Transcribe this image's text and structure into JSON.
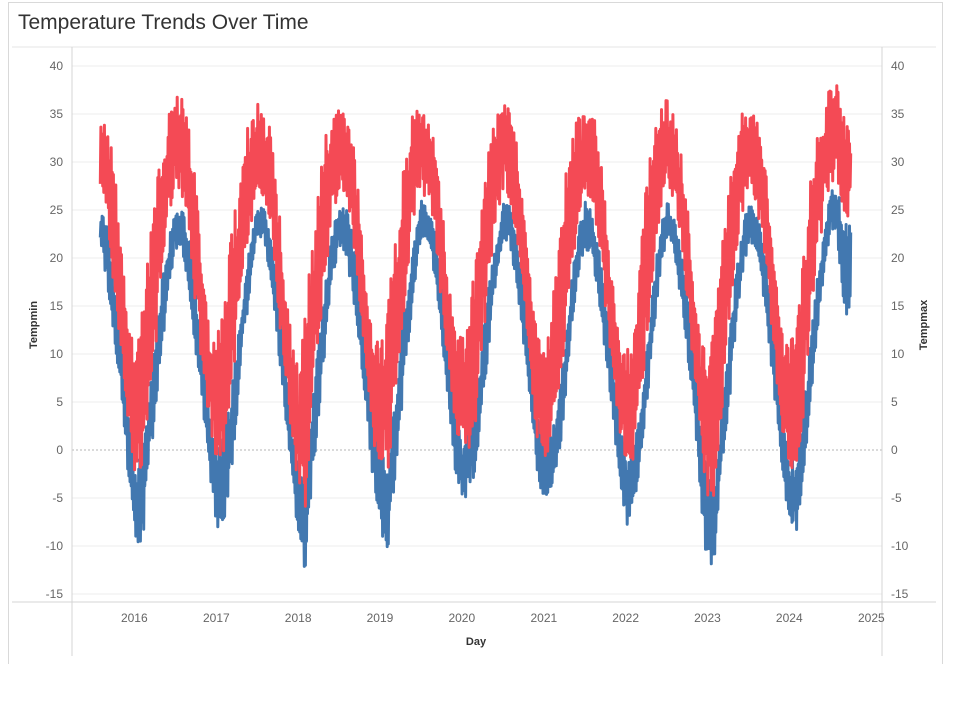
{
  "title": "Temperature Trends Over Time",
  "chart_data": {
    "type": "line",
    "title": "Temperature Trends Over Time",
    "xlabel": "Day",
    "ylabel_left": "Tempmin",
    "ylabel_right": "Tempmax",
    "xlim": [
      "2015-08-01",
      "2024-09-10"
    ],
    "ylim": [
      -15,
      40
    ],
    "y_ticks": [
      -15,
      -10,
      -5,
      0,
      5,
      10,
      15,
      20,
      25,
      30,
      35,
      40
    ],
    "x_ticks": [
      "2016",
      "2017",
      "2018",
      "2019",
      "2020",
      "2021",
      "2022",
      "2023",
      "2024",
      "2025"
    ],
    "grid": true,
    "zero_line": true,
    "series": [
      {
        "name": "Tempmin",
        "axis": "left",
        "color": "#4278b0",
        "x": [
          "2015-08-01",
          "2015-09-01",
          "2015-10-01",
          "2015-11-01",
          "2015-12-01",
          "2016-01-01",
          "2016-02-01",
          "2016-03-01",
          "2016-04-01",
          "2016-05-01",
          "2016-06-01",
          "2016-07-01",
          "2016-08-01",
          "2016-09-01",
          "2016-10-01",
          "2016-11-01",
          "2016-12-01",
          "2017-01-01",
          "2017-02-01",
          "2017-03-01",
          "2017-04-01",
          "2017-05-01",
          "2017-06-01",
          "2017-07-01",
          "2017-08-01",
          "2017-09-01",
          "2017-10-01",
          "2017-11-01",
          "2017-12-01",
          "2018-01-01",
          "2018-02-01",
          "2018-03-01",
          "2018-04-01",
          "2018-05-01",
          "2018-06-01",
          "2018-07-01",
          "2018-08-01",
          "2018-09-01",
          "2018-10-01",
          "2018-11-01",
          "2018-12-01",
          "2019-01-01",
          "2019-02-01",
          "2019-03-01",
          "2019-04-01",
          "2019-05-01",
          "2019-06-01",
          "2019-07-01",
          "2019-08-01",
          "2019-09-01",
          "2019-10-01",
          "2019-11-01",
          "2019-12-01",
          "2020-01-01",
          "2020-02-01",
          "2020-03-01",
          "2020-04-01",
          "2020-05-01",
          "2020-06-01",
          "2020-07-01",
          "2020-08-01",
          "2020-09-01",
          "2020-10-01",
          "2020-11-01",
          "2020-12-01",
          "2021-01-01",
          "2021-02-01",
          "2021-03-01",
          "2021-04-01",
          "2021-05-01",
          "2021-06-01",
          "2021-07-01",
          "2021-08-01",
          "2021-09-01",
          "2021-10-01",
          "2021-11-01",
          "2021-12-01",
          "2022-01-01",
          "2022-02-01",
          "2022-03-01",
          "2022-04-01",
          "2022-05-01",
          "2022-06-01",
          "2022-07-01",
          "2022-08-01",
          "2022-09-01",
          "2022-10-01",
          "2022-11-01",
          "2022-12-01",
          "2023-01-01",
          "2023-02-01",
          "2023-03-01",
          "2023-04-01",
          "2023-05-01",
          "2023-06-01",
          "2023-07-01",
          "2023-08-01",
          "2023-09-01",
          "2023-10-01",
          "2023-11-01",
          "2023-12-01",
          "2024-01-01",
          "2024-02-01",
          "2024-03-01",
          "2024-04-01",
          "2024-05-01",
          "2024-06-01",
          "2024-07-01",
          "2024-08-01",
          "2024-09-01"
        ],
        "lo": [
          21,
          17,
          12,
          6,
          -2,
          -9,
          -11,
          -3,
          3,
          10,
          17,
          21,
          21,
          16,
          10,
          4,
          -3,
          -8,
          -9,
          -4,
          3,
          11,
          17,
          22,
          22,
          17,
          11,
          4,
          -3,
          -10,
          -13,
          -4,
          3,
          11,
          18,
          21,
          20,
          16,
          10,
          4,
          -4,
          -8,
          -12,
          -5,
          3,
          10,
          17,
          22,
          22,
          18,
          12,
          5,
          -2,
          -5,
          -5,
          -2,
          4,
          11,
          18,
          22,
          21,
          17,
          11,
          5,
          -3,
          -5,
          -4,
          -2,
          4,
          12,
          18,
          21,
          20,
          16,
          10,
          4,
          -3,
          -8,
          -7,
          -3,
          4,
          11,
          18,
          22,
          21,
          16,
          10,
          4,
          -6,
          -13,
          -11,
          -3,
          3,
          11,
          18,
          21,
          21,
          17,
          11,
          4,
          -3,
          -8,
          -9,
          -3,
          4,
          11,
          18,
          23,
          22,
          14
        ],
        "hi": [
          25,
          23,
          17,
          12,
          5,
          -2,
          0,
          6,
          12,
          18,
          22,
          26,
          25,
          22,
          16,
          10,
          3,
          0,
          2,
          6,
          12,
          18,
          22,
          26,
          25,
          22,
          17,
          10,
          2,
          -2,
          -3,
          5,
          12,
          18,
          23,
          26,
          25,
          22,
          17,
          11,
          3,
          0,
          -2,
          5,
          12,
          18,
          22,
          26,
          25,
          23,
          17,
          11,
          5,
          0,
          3,
          5,
          12,
          18,
          22,
          26,
          26,
          22,
          17,
          11,
          4,
          0,
          2,
          5,
          11,
          18,
          23,
          26,
          25,
          21,
          16,
          10,
          3,
          -1,
          0,
          4,
          11,
          18,
          23,
          26,
          24,
          21,
          16,
          10,
          2,
          -3,
          -3,
          4,
          11,
          18,
          23,
          26,
          25,
          22,
          17,
          10,
          3,
          -1,
          -1,
          5,
          12,
          18,
          23,
          27,
          27,
          24
        ]
      },
      {
        "name": "Tempmax",
        "axis": "right",
        "color": "#f44a55",
        "x": [
          "2015-08-01",
          "2015-09-01",
          "2015-10-01",
          "2015-11-01",
          "2015-12-01",
          "2016-01-01",
          "2016-02-01",
          "2016-03-01",
          "2016-04-01",
          "2016-05-01",
          "2016-06-01",
          "2016-07-01",
          "2016-08-01",
          "2016-09-01",
          "2016-10-01",
          "2016-11-01",
          "2016-12-01",
          "2017-01-01",
          "2017-02-01",
          "2017-03-01",
          "2017-04-01",
          "2017-05-01",
          "2017-06-01",
          "2017-07-01",
          "2017-08-01",
          "2017-09-01",
          "2017-10-01",
          "2017-11-01",
          "2017-12-01",
          "2018-01-01",
          "2018-02-01",
          "2018-03-01",
          "2018-04-01",
          "2018-05-01",
          "2018-06-01",
          "2018-07-01",
          "2018-08-01",
          "2018-09-01",
          "2018-10-01",
          "2018-11-01",
          "2018-12-01",
          "2019-01-01",
          "2019-02-01",
          "2019-03-01",
          "2019-04-01",
          "2019-05-01",
          "2019-06-01",
          "2019-07-01",
          "2019-08-01",
          "2019-09-01",
          "2019-10-01",
          "2019-11-01",
          "2019-12-01",
          "2020-01-01",
          "2020-02-01",
          "2020-03-01",
          "2020-04-01",
          "2020-05-01",
          "2020-06-01",
          "2020-07-01",
          "2020-08-01",
          "2020-09-01",
          "2020-10-01",
          "2020-11-01",
          "2020-12-01",
          "2021-01-01",
          "2021-02-01",
          "2021-03-01",
          "2021-04-01",
          "2021-05-01",
          "2021-06-01",
          "2021-07-01",
          "2021-08-01",
          "2021-09-01",
          "2021-10-01",
          "2021-11-01",
          "2021-12-01",
          "2022-01-01",
          "2022-02-01",
          "2022-03-01",
          "2022-04-01",
          "2022-05-01",
          "2022-06-01",
          "2022-07-01",
          "2022-08-01",
          "2022-09-01",
          "2022-10-01",
          "2022-11-01",
          "2022-12-01",
          "2023-01-01",
          "2023-02-01",
          "2023-03-01",
          "2023-04-01",
          "2023-05-01",
          "2023-06-01",
          "2023-07-01",
          "2023-08-01",
          "2023-09-01",
          "2023-10-01",
          "2023-11-01",
          "2023-12-01",
          "2024-01-01",
          "2024-02-01",
          "2024-03-01",
          "2024-04-01",
          "2024-05-01",
          "2024-06-01",
          "2024-07-01",
          "2024-08-01",
          "2024-09-01"
        ],
        "lo": [
          27,
          24,
          16,
          10,
          2,
          -3,
          -2,
          4,
          10,
          18,
          24,
          27,
          26,
          22,
          14,
          8,
          2,
          -1,
          -1,
          4,
          11,
          18,
          23,
          27,
          26,
          22,
          15,
          8,
          1,
          -4,
          -6,
          3,
          11,
          18,
          24,
          27,
          26,
          22,
          15,
          8,
          1,
          -3,
          -4,
          3,
          10,
          18,
          24,
          27,
          26,
          23,
          15,
          9,
          2,
          0,
          0,
          3,
          11,
          18,
          24,
          27,
          26,
          22,
          15,
          8,
          1,
          -1,
          -1,
          4,
          11,
          18,
          24,
          27,
          26,
          22,
          15,
          8,
          2,
          -2,
          -2,
          3,
          11,
          18,
          24,
          27,
          26,
          22,
          15,
          8,
          1,
          -6,
          -5,
          3,
          11,
          18,
          24,
          27,
          26,
          22,
          15,
          8,
          1,
          -2,
          -2,
          3,
          11,
          18,
          25,
          28,
          28,
          24
        ],
        "hi": [
          35,
          34,
          29,
          21,
          14,
          10,
          15,
          22,
          27,
          32,
          35,
          38,
          37,
          33,
          27,
          18,
          12,
          12,
          15,
          22,
          27,
          32,
          35,
          36,
          35,
          33,
          26,
          17,
          12,
          8,
          15,
          22,
          28,
          33,
          35,
          36,
          35,
          32,
          25,
          16,
          12,
          12,
          16,
          22,
          28,
          33,
          36,
          36,
          35,
          32,
          26,
          17,
          12,
          12,
          15,
          21,
          27,
          32,
          35,
          37,
          35,
          32,
          25,
          17,
          12,
          10,
          14,
          22,
          28,
          33,
          35,
          36,
          36,
          32,
          25,
          17,
          11,
          10,
          14,
          21,
          28,
          33,
          36,
          37,
          35,
          31,
          25,
          16,
          11,
          10,
          14,
          21,
          27,
          32,
          35,
          36,
          35,
          32,
          25,
          17,
          12,
          12,
          15,
          22,
          28,
          33,
          36,
          39,
          38,
          34
        ]
      }
    ]
  }
}
